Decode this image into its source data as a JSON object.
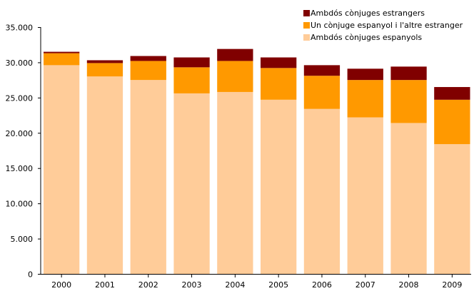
{
  "chart_data": {
    "type": "bar",
    "stacked": true,
    "categories": [
      "2000",
      "2001",
      "2002",
      "2003",
      "2004",
      "2005",
      "2006",
      "2007",
      "2008",
      "2009"
    ],
    "series": [
      {
        "name": "Ambdós cònjuges espanyols",
        "color": "#FFCC99",
        "values": [
          29600,
          28000,
          27500,
          25600,
          25800,
          24700,
          23400,
          22200,
          21400,
          18400
        ]
      },
      {
        "name": "Un cònjuge espanyol i l'altre estranger",
        "color": "#FF9900",
        "values": [
          1700,
          1900,
          2700,
          3700,
          4400,
          4500,
          4700,
          5300,
          6100,
          6300
        ]
      },
      {
        "name": "Ambdós cònjuges estrangers",
        "color": "#800000",
        "values": [
          200,
          400,
          700,
          1400,
          1700,
          1500,
          1500,
          1600,
          1900,
          1800
        ]
      }
    ],
    "ylim": [
      0,
      35000
    ],
    "yticks": [
      0,
      5000,
      10000,
      15000,
      20000,
      25000,
      30000,
      35000
    ],
    "ytick_labels": [
      "0",
      "5.000",
      "10.000",
      "15.000",
      "20.000",
      "25.000",
      "30.000",
      "35.000"
    ],
    "legend_position": "top-right",
    "grid": false
  }
}
